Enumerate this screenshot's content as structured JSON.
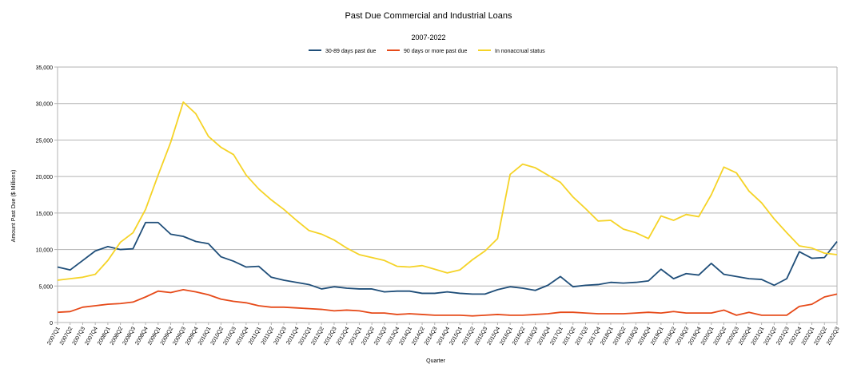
{
  "chart_data": {
    "type": "line",
    "title": "Past Due Commercial and Industrial Loans",
    "subtitle": "2007-2022",
    "xlabel": "Quarter",
    "ylabel": "Amount Past Due ($ Millions)",
    "ylim": [
      0,
      35000
    ],
    "yticks": [
      "0",
      "5,000",
      "10,000",
      "15,000",
      "20,000",
      "25,000",
      "30,000",
      "35,000"
    ],
    "grid": true,
    "legend_position": "top",
    "categories": [
      "2007Q1",
      "2007Q2",
      "2007Q3",
      "2007Q4",
      "2008Q1",
      "2008Q2",
      "2008Q3",
      "2008Q4",
      "2009Q1",
      "2009Q2",
      "2009Q3",
      "2009Q4",
      "2010Q1",
      "2010Q2",
      "2010Q3",
      "2010Q4",
      "2011Q1",
      "2011Q2",
      "2011Q3",
      "2011Q4",
      "2012Q1",
      "2012Q2",
      "2012Q3",
      "2012Q4",
      "2013Q1",
      "2013Q2",
      "2013Q3",
      "2013Q4",
      "2014Q1",
      "2014Q2",
      "2014Q3",
      "2014Q4",
      "2015Q1",
      "2015Q2",
      "2015Q3",
      "2015Q4",
      "2016Q1",
      "2016Q2",
      "2016Q3",
      "2016Q4",
      "2017Q1",
      "2017Q2",
      "2017Q3",
      "2017Q4",
      "2018Q1",
      "2018Q2",
      "2018Q3",
      "2018Q4",
      "2019Q1",
      "2019Q2",
      "2019Q3",
      "2019Q4",
      "2020Q1",
      "2020Q2",
      "2020Q3",
      "2020Q4",
      "2021Q1",
      "2021Q2",
      "2021Q3",
      "2021Q4",
      "2022Q1",
      "2022Q2",
      "2022Q3"
    ],
    "series": [
      {
        "name": "30-89 days past due",
        "color": "#1f4e79",
        "values": [
          7600,
          7200,
          8500,
          9800,
          10400,
          10000,
          10100,
          13700,
          13700,
          12100,
          11800,
          11100,
          10800,
          9000,
          8400,
          7600,
          7700,
          6200,
          5800,
          5500,
          5200,
          4600,
          4900,
          4700,
          4600,
          4600,
          4200,
          4300,
          4300,
          4000,
          4000,
          4200,
          4000,
          3900,
          3900,
          4500,
          4900,
          4700,
          4400,
          5100,
          6300,
          4900,
          5100,
          5200,
          5500,
          5400,
          5500,
          5700,
          7300,
          6000,
          6700,
          6500,
          8100,
          6600,
          6300,
          6000,
          5900,
          5100,
          6000,
          9700,
          8800,
          8900,
          11100
        ]
      },
      {
        "name": "90 days or more past due",
        "color": "#e64a19",
        "values": [
          1400,
          1500,
          2100,
          2300,
          2500,
          2600,
          2800,
          3500,
          4300,
          4100,
          4500,
          4200,
          3800,
          3200,
          2900,
          2700,
          2300,
          2100,
          2100,
          2000,
          1900,
          1800,
          1600,
          1700,
          1600,
          1300,
          1300,
          1100,
          1200,
          1100,
          1000,
          1000,
          1000,
          900,
          1000,
          1100,
          1000,
          1000,
          1100,
          1200,
          1400,
          1400,
          1300,
          1200,
          1200,
          1200,
          1300,
          1400,
          1300,
          1500,
          1300,
          1300,
          1300,
          1700,
          1000,
          1400,
          1000,
          1000,
          1000,
          2200,
          2500,
          3500,
          3900
        ]
      },
      {
        "name": "In nonaccrual status",
        "color": "#f5d327",
        "values": [
          5800,
          6000,
          6200,
          6600,
          8500,
          11000,
          12300,
          15500,
          20200,
          24700,
          30200,
          28600,
          25500,
          24000,
          23000,
          20200,
          18300,
          16800,
          15500,
          14000,
          12600,
          12100,
          11300,
          10200,
          9300,
          8900,
          8500,
          7700,
          7600,
          7800,
          7300,
          6800,
          7200,
          8600,
          9800,
          11500,
          20300,
          21700,
          21200,
          20200,
          19200,
          17200,
          15600,
          13900,
          14000,
          12800,
          12300,
          11500,
          14600,
          14000,
          14800,
          14500,
          17500,
          21300,
          20500,
          18000,
          16400,
          14200,
          12300,
          10500,
          10200,
          9500,
          9300
        ]
      }
    ]
  }
}
